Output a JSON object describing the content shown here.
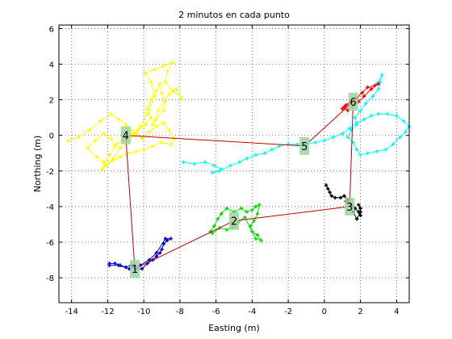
{
  "chart_data": {
    "type": "scatter",
    "title": "2 minutos en cada punto",
    "xlabel": "Easting  (m)",
    "ylabel": "Northing  (m)",
    "xlim": [
      -14.7,
      4.7
    ],
    "ylim": [
      -9.4,
      6.2
    ],
    "xticks": [
      -14,
      -12,
      -10,
      -8,
      -6,
      -4,
      -2,
      0,
      2,
      4
    ],
    "yticks": [
      -8,
      -6,
      -4,
      -2,
      0,
      2,
      4,
      6
    ],
    "grid": true,
    "path": {
      "color": "#c00000",
      "points": [
        [
          -11,
          0
        ],
        [
          -10.5,
          -7.5
        ],
        [
          -5,
          -4.8
        ],
        [
          1.4,
          -4
        ],
        [
          1.6,
          1.9
        ],
        [
          -1.1,
          -0.6
        ],
        [
          -11,
          0
        ]
      ]
    },
    "markers": [
      {
        "label": "1",
        "x": -10.5,
        "y": -7.5
      },
      {
        "label": "2",
        "x": -5,
        "y": -4.8
      },
      {
        "label": "3",
        "x": 1.4,
        "y": -4
      },
      {
        "label": "4",
        "x": -11,
        "y": 0
      },
      {
        "label": "5",
        "x": -1.1,
        "y": -0.6
      },
      {
        "label": "6",
        "x": 1.6,
        "y": 1.9
      }
    ],
    "series": [
      {
        "color": "#ffff00",
        "points": [
          [
            -14.2,
            -0.3
          ],
          [
            -13.6,
            -0.1
          ],
          [
            -13,
            0.3
          ],
          [
            -12.4,
            0.8
          ],
          [
            -11.8,
            1.2
          ],
          [
            -11.4,
            0.9
          ],
          [
            -11,
            0.6
          ],
          [
            -10.7,
            0.3
          ],
          [
            -10.4,
            0.1
          ],
          [
            -10.1,
            -0.2
          ],
          [
            -9.7,
            0.2
          ],
          [
            -9.3,
            0.5
          ],
          [
            -8.9,
            0.7
          ],
          [
            -8.6,
            0.3
          ],
          [
            -8.3,
            -0.2
          ],
          [
            -8.5,
            -0.5
          ],
          [
            -9,
            -0.4
          ],
          [
            -9.5,
            -0.6
          ],
          [
            -10,
            -0.8
          ],
          [
            -10.4,
            -0.9
          ],
          [
            -10.9,
            -1
          ],
          [
            -11.3,
            -1.2
          ],
          [
            -11.7,
            -1.4
          ],
          [
            -12,
            -1.6
          ],
          [
            -12.3,
            -1.9
          ],
          [
            -12.2,
            -1.5
          ],
          [
            -11.9,
            -1.1
          ],
          [
            -11.6,
            -0.6
          ],
          [
            -11.8,
            -0.2
          ],
          [
            -12.2,
            0.1
          ],
          [
            -12.7,
            -0.3
          ],
          [
            -13.1,
            -0.7
          ],
          [
            -12.6,
            -1.2
          ],
          [
            -12.1,
            -1.7
          ],
          [
            -11.7,
            -1.3
          ],
          [
            -11.3,
            -0.7
          ],
          [
            -10.8,
            -0.3
          ],
          [
            -10.3,
            0.3
          ],
          [
            -9.9,
            0.6
          ],
          [
            -9.6,
            1
          ],
          [
            -9.8,
            1.5
          ],
          [
            -9.6,
            2
          ],
          [
            -9.3,
            2.5
          ],
          [
            -9.1,
            2.9
          ],
          [
            -9,
            2.4
          ],
          [
            -8.8,
            1.9
          ],
          [
            -8.9,
            1.4
          ],
          [
            -9.3,
            0.9
          ],
          [
            -9.5,
            0.6
          ],
          [
            -9.2,
            1.4
          ],
          [
            -8.6,
            2.3
          ],
          [
            -8.2,
            2.6
          ],
          [
            -7.9,
            2.1
          ],
          [
            -8.4,
            2.5
          ],
          [
            -8.8,
            3
          ],
          [
            -8.7,
            3.6
          ],
          [
            -8.4,
            4.1
          ],
          [
            -8.9,
            3.9
          ],
          [
            -9.4,
            3.7
          ],
          [
            -9.9,
            3.5
          ],
          [
            -9.6,
            3
          ],
          [
            -9.4,
            2.2
          ],
          [
            -9.8,
            1.2
          ],
          [
            -10.2,
            0.5
          ],
          [
            -10.6,
            0.1
          ],
          [
            -11.1,
            -0.2
          ],
          [
            -11.5,
            -0.5
          ]
        ]
      },
      {
        "color": "#00ffff",
        "points": [
          [
            -7.8,
            -1.5
          ],
          [
            -7.2,
            -1.6
          ],
          [
            -6.6,
            -1.5
          ],
          [
            -6.1,
            -1.7
          ],
          [
            -5.7,
            -1.9
          ],
          [
            -6.2,
            -2.1
          ],
          [
            -5.8,
            -2
          ],
          [
            -5.2,
            -1.7
          ],
          [
            -4.7,
            -1.5
          ],
          [
            -4.3,
            -1.3
          ],
          [
            -3.8,
            -1.1
          ],
          [
            -3.3,
            -1
          ],
          [
            -2.9,
            -0.8
          ],
          [
            -2.5,
            -0.6
          ],
          [
            -2,
            -0.5
          ],
          [
            -1.5,
            -0.5
          ],
          [
            -1,
            -0.5
          ],
          [
            -0.5,
            -0.4
          ],
          [
            0,
            -0.3
          ],
          [
            0.5,
            -0.1
          ],
          [
            1,
            0.1
          ],
          [
            1.4,
            0.4
          ],
          [
            1.8,
            0.7
          ],
          [
            2.2,
            0.9
          ],
          [
            2.6,
            1.1
          ],
          [
            3,
            1.2
          ],
          [
            3.5,
            1.2
          ],
          [
            4,
            1.1
          ],
          [
            4.4,
            0.8
          ],
          [
            4.7,
            0.5
          ],
          [
            4.5,
            0.2
          ],
          [
            4.2,
            -0.1
          ],
          [
            3.8,
            -0.5
          ],
          [
            3.4,
            -0.8
          ],
          [
            2.9,
            -0.9
          ],
          [
            2.4,
            -1
          ],
          [
            2,
            -1.1
          ],
          [
            1.8,
            -0.8
          ],
          [
            1.6,
            -0.4
          ],
          [
            1.3,
            -0.1
          ],
          [
            1.5,
            0.3
          ],
          [
            1.8,
            0.6
          ],
          [
            1.7,
            1
          ],
          [
            2,
            1.4
          ],
          [
            2.3,
            1.8
          ],
          [
            2.7,
            2.2
          ],
          [
            3,
            2.6
          ],
          [
            3.1,
            3
          ],
          [
            3.2,
            3.4
          ],
          [
            2.9,
            2.9
          ]
        ]
      },
      {
        "color": "#ff0000",
        "points": [
          [
            1,
            1.5
          ],
          [
            1.2,
            1.7
          ],
          [
            1.5,
            1.9
          ],
          [
            1.8,
            2.1
          ],
          [
            2.1,
            2.4
          ],
          [
            2.4,
            2.7
          ],
          [
            2.8,
            2.8
          ],
          [
            3,
            2.9
          ],
          [
            2.6,
            2.6
          ],
          [
            2.2,
            2.2
          ],
          [
            1.9,
            1.9
          ],
          [
            1.6,
            1.7
          ],
          [
            1.3,
            1.4
          ],
          [
            1.1,
            1.6
          ],
          [
            1.4,
            1.8
          ]
        ]
      },
      {
        "color": "#000000",
        "points": [
          [
            0.1,
            -2.8
          ],
          [
            0.2,
            -3
          ],
          [
            0.3,
            -3.2
          ],
          [
            0.4,
            -3.4
          ],
          [
            0.6,
            -3.5
          ],
          [
            0.9,
            -3.5
          ],
          [
            1.1,
            -3.4
          ],
          [
            1.3,
            -3.6
          ],
          [
            1.2,
            -3.7
          ],
          [
            1.5,
            -3.9
          ],
          [
            1.7,
            -4.1
          ],
          [
            1.9,
            -4.3
          ],
          [
            2,
            -4.5
          ],
          [
            2,
            -4.1
          ],
          [
            1.9,
            -3.9
          ],
          [
            2,
            -4.3
          ],
          [
            1.8,
            -4.7
          ],
          [
            1.6,
            -4.3
          ]
        ]
      },
      {
        "color": "#00e000",
        "points": [
          [
            -6.3,
            -5.4
          ],
          [
            -6.1,
            -5.1
          ],
          [
            -5.9,
            -4.7
          ],
          [
            -5.7,
            -4.4
          ],
          [
            -5.4,
            -4.1
          ],
          [
            -5,
            -4.3
          ],
          [
            -4.6,
            -4.1
          ],
          [
            -4.3,
            -4.3
          ],
          [
            -4,
            -4.2
          ],
          [
            -3.8,
            -4
          ],
          [
            -3.6,
            -3.9
          ],
          [
            -3.7,
            -4.4
          ],
          [
            -3.9,
            -4.8
          ],
          [
            -4.1,
            -5.1
          ],
          [
            -4,
            -5.4
          ],
          [
            -3.7,
            -5.6
          ],
          [
            -3.5,
            -5.9
          ],
          [
            -3.8,
            -5.8
          ],
          [
            -4.4,
            -4.6
          ],
          [
            -4.8,
            -4.9
          ],
          [
            -5.1,
            -5.2
          ],
          [
            -5.4,
            -5.3
          ],
          [
            -5.8,
            -5.2
          ],
          [
            -6.2,
            -5.5
          ]
        ]
      },
      {
        "color": "#0000cc",
        "points": [
          [
            -11.9,
            -7.2
          ],
          [
            -11.6,
            -7.2
          ],
          [
            -11.3,
            -7.3
          ],
          [
            -11,
            -7.4
          ],
          [
            -10.7,
            -7.3
          ],
          [
            -10.4,
            -7.5
          ],
          [
            -10.1,
            -7.5
          ],
          [
            -9.8,
            -7.2
          ],
          [
            -9.5,
            -7
          ],
          [
            -9.3,
            -6.8
          ],
          [
            -9.1,
            -6.6
          ],
          [
            -9,
            -6.4
          ],
          [
            -8.9,
            -6.1
          ],
          [
            -8.7,
            -5.9
          ],
          [
            -8.5,
            -5.8
          ],
          [
            -8.8,
            -5.8
          ],
          [
            -9.3,
            -6.6
          ],
          [
            -9.7,
            -7
          ],
          [
            -10.2,
            -7.3
          ],
          [
            -10.8,
            -7.5
          ],
          [
            -11.4,
            -7.3
          ],
          [
            -11.9,
            -7.3
          ]
        ]
      }
    ]
  }
}
